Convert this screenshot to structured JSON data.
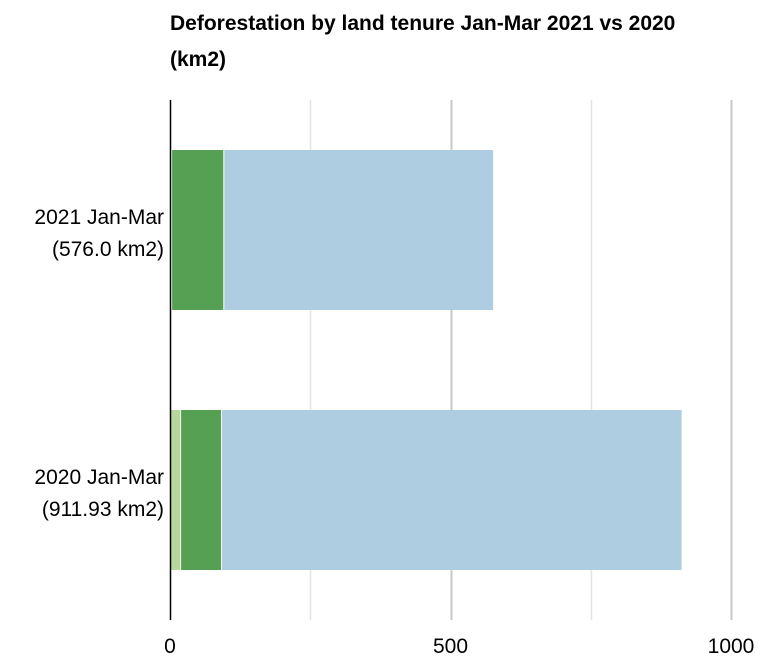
{
  "chart_data": {
    "type": "bar",
    "orientation": "horizontal",
    "stacked": true,
    "title": "Deforestation by land tenure Jan-Mar 2021 vs 2020 (km2)",
    "categories": [
      "2021 Jan-Mar",
      "2020 Jan-Mar"
    ],
    "category_sublabels": [
      "(576.0 km2)",
      "(911.93 km2)"
    ],
    "series": [
      {
        "color": "#b7d79b",
        "values": [
          2,
          18
        ]
      },
      {
        "color": "#55a052",
        "values": [
          93,
          73
        ]
      },
      {
        "color": "#aecde0",
        "values": [
          481,
          821
        ]
      }
    ],
    "xlim": [
      0,
      1000
    ],
    "x_ticks": [
      0,
      500,
      1000
    ],
    "grid_step": 250,
    "grid": true,
    "legend": "none"
  }
}
